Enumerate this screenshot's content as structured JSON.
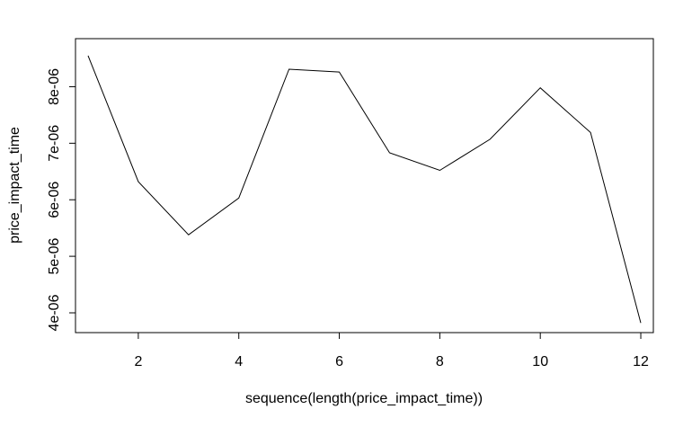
{
  "chart_data": {
    "type": "line",
    "title": "",
    "xlabel": "sequence(length(price_impact_time))",
    "ylabel": "price_impact_time",
    "x": [
      1,
      2,
      3,
      4,
      5,
      6,
      7,
      8,
      9,
      10,
      11,
      12
    ],
    "series": [
      {
        "values": [
          8.55e-06,
          6.32e-06,
          5.38e-06,
          6.03e-06,
          8.31e-06,
          8.26e-06,
          6.83e-06,
          6.52e-06,
          7.07e-06,
          7.98e-06,
          7.19e-06,
          3.82e-06
        ]
      }
    ],
    "xlim": [
      0.75,
      12.25
    ],
    "ylim": [
      3.65e-06,
      8.85e-06
    ],
    "xticks": [
      2,
      4,
      6,
      8,
      10,
      12
    ],
    "xtick_labels": [
      "2",
      "4",
      "6",
      "8",
      "10",
      "12"
    ],
    "yticks": [
      4e-06,
      5e-06,
      6e-06,
      7e-06,
      8e-06
    ],
    "ytick_labels": [
      "4e-06",
      "5e-06",
      "6e-06",
      "7e-06",
      "8e-06"
    ],
    "grid": false,
    "line_color": "#000000"
  }
}
